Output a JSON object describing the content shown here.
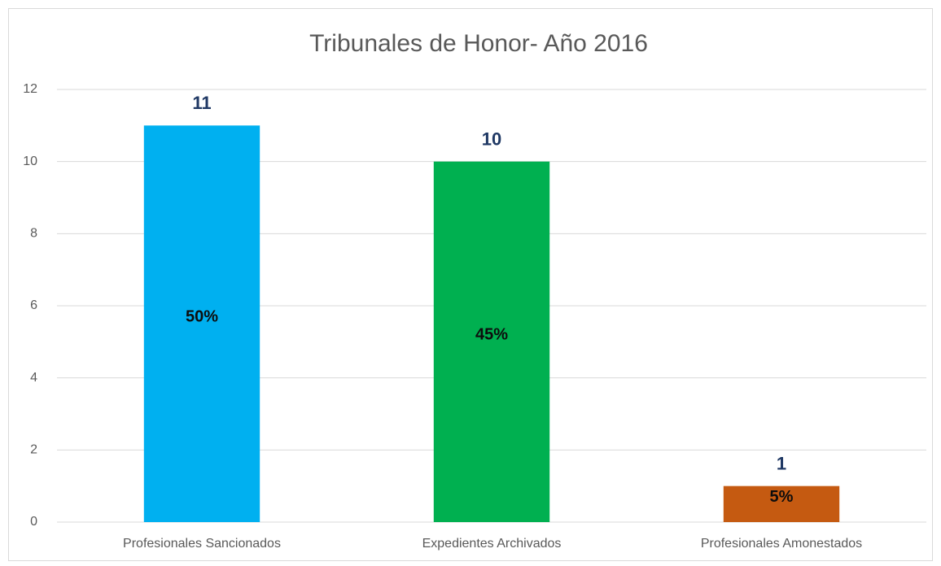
{
  "chart_data": {
    "type": "bar",
    "title": "Tribunales de Honor- Año 2016",
    "categories": [
      "Profesionales Sancionados",
      "Expedientes Archivados",
      "Profesionales Amonestados"
    ],
    "values": [
      11,
      10,
      1
    ],
    "percent_labels": [
      "50%",
      "45%",
      "5%"
    ],
    "colors": [
      "#00b0f0",
      "#00b050",
      "#c55a11"
    ],
    "ylim": [
      0,
      12
    ],
    "yticks": [
      0,
      2,
      4,
      6,
      8,
      10,
      12
    ],
    "grid": true
  }
}
